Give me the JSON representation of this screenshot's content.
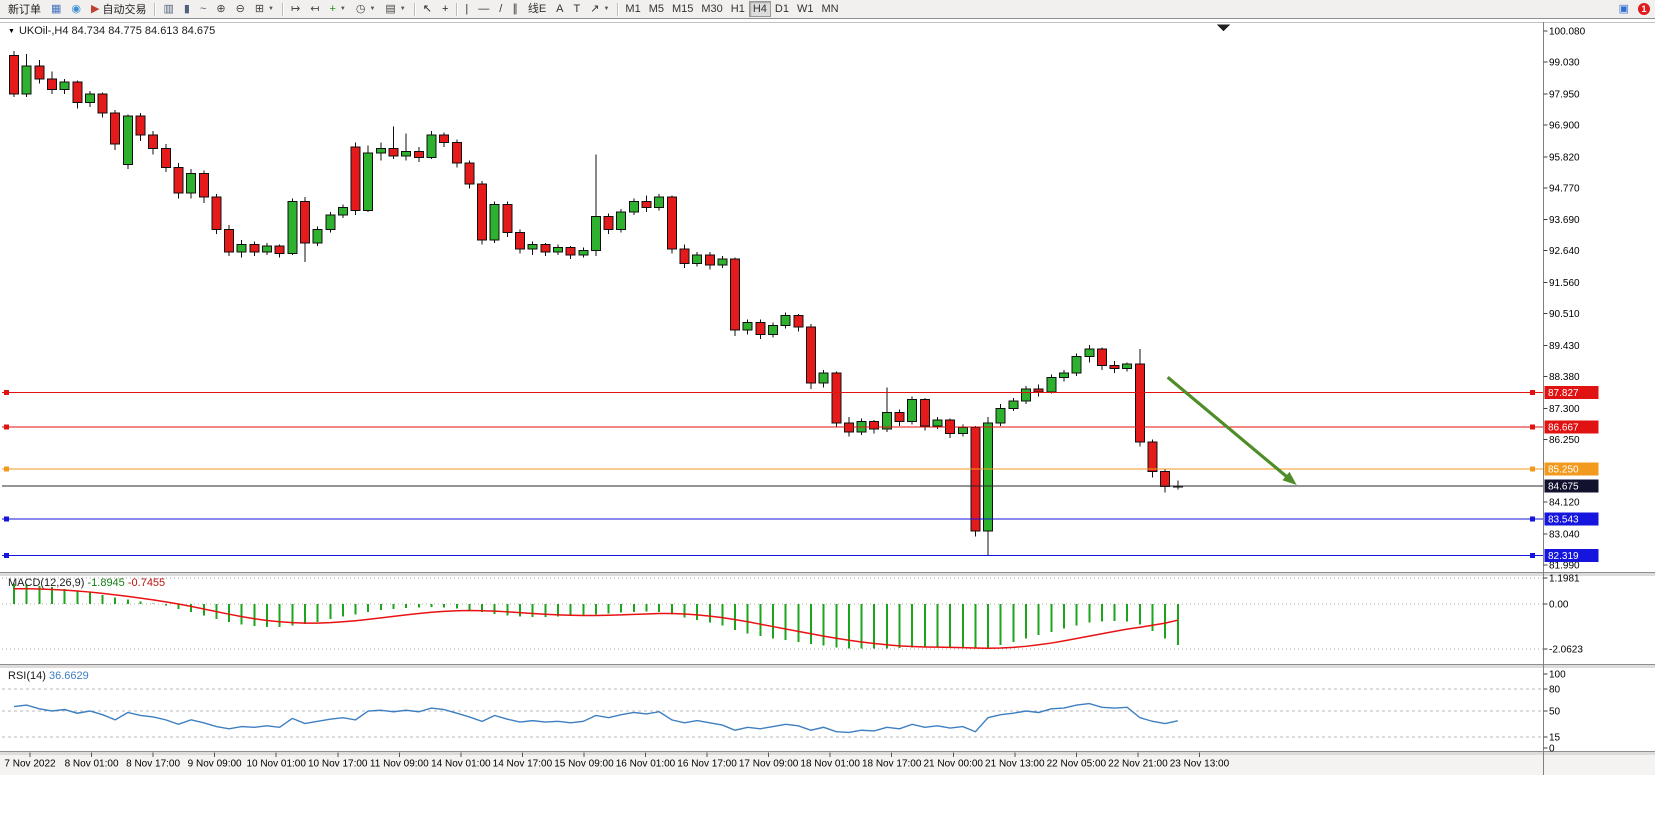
{
  "window": {
    "notification_count": "1"
  },
  "toolbar": {
    "groups": [
      [
        {
          "kind": "text",
          "name": "new-order-button",
          "label": "新订单"
        },
        {
          "kind": "icon",
          "name": "new-chart-window-icon",
          "glyph": "▦",
          "color": "#4273be"
        },
        {
          "kind": "icon",
          "name": "mql5-community-icon",
          "glyph": "◉",
          "color": "#3f8fd2"
        },
        {
          "kind": "icon-text",
          "name": "autotrading-button",
          "label": "自动交易",
          "glyph": "▶",
          "color": "#bf4030"
        }
      ],
      [
        {
          "kind": "icon",
          "name": "bar-chart-icon",
          "glyph": "▥",
          "color": "#50617a"
        },
        {
          "kind": "icon",
          "name": "candlestick-chart-icon",
          "glyph": "▮",
          "color": "#50617a"
        },
        {
          "kind": "icon",
          "name": "line-chart-icon",
          "glyph": "~",
          "color": "#50617a"
        },
        {
          "kind": "icon",
          "name": "zoom-in-icon",
          "glyph": "⊕",
          "color": "#444444"
        },
        {
          "kind": "icon",
          "name": "zoom-out-icon",
          "glyph": "⊖",
          "color": "#444444"
        },
        {
          "kind": "icon",
          "name": "tile-windows-icon",
          "glyph": "⊞",
          "color": "#444444",
          "caret": true
        }
      ],
      [
        {
          "kind": "icon",
          "name": "auto-scroll-icon",
          "glyph": "↦",
          "color": "#444444"
        },
        {
          "kind": "icon",
          "name": "chart-shift-icon",
          "glyph": "↤",
          "color": "#444444"
        },
        {
          "kind": "icon",
          "name": "new-chart-icon",
          "glyph": "+",
          "color": "#1f8f1f",
          "caret": true
        },
        {
          "kind": "icon",
          "name": "chart-period-icon",
          "glyph": "◷",
          "color": "#444444",
          "caret": true
        },
        {
          "kind": "icon",
          "name": "chart-template-icon",
          "glyph": "▤",
          "color": "#444444",
          "caret": true
        }
      ],
      [
        {
          "kind": "icon",
          "name": "cursor-icon",
          "glyph": "↖",
          "color": "#222222"
        },
        {
          "kind": "icon",
          "name": "crosshair-icon",
          "glyph": "+",
          "color": "#222222"
        }
      ],
      [
        {
          "kind": "icon",
          "name": "vertical-line-icon",
          "glyph": "|",
          "color": "#333333"
        },
        {
          "kind": "icon",
          "name": "horizontal-line-icon",
          "glyph": "—",
          "color": "#333333"
        },
        {
          "kind": "icon",
          "name": "trendline-icon",
          "glyph": "/",
          "color": "#333333"
        },
        {
          "kind": "icon",
          "name": "channel-icon",
          "glyph": "∥",
          "color": "#333333"
        },
        {
          "kind": "icon",
          "name": "fibonacci-icon",
          "glyph": "线E",
          "color": "#333333"
        },
        {
          "kind": "icon",
          "name": "text-icon",
          "glyph": "A",
          "color": "#333333"
        },
        {
          "kind": "icon",
          "name": "text-label-icon",
          "glyph": "T",
          "color": "#333333"
        },
        {
          "kind": "icon",
          "name": "arrows-icon",
          "glyph": "↗",
          "color": "#333333",
          "caret": true
        }
      ],
      [
        {
          "kind": "tf",
          "name": "timeframe-m1",
          "label": "M1"
        },
        {
          "kind": "tf",
          "name": "timeframe-m5",
          "label": "M5"
        },
        {
          "kind": "tf",
          "name": "timeframe-m15",
          "label": "M15"
        },
        {
          "kind": "tf",
          "name": "timeframe-m30",
          "label": "M30"
        },
        {
          "kind": "tf",
          "name": "timeframe-h1",
          "label": "H1"
        },
        {
          "kind": "tf",
          "name": "timeframe-h4",
          "label": "H4",
          "active": true
        },
        {
          "kind": "tf",
          "name": "timeframe-d1",
          "label": "D1"
        },
        {
          "kind": "tf",
          "name": "timeframe-w1",
          "label": "W1"
        },
        {
          "kind": "tf",
          "name": "timeframe-mn",
          "label": "MN"
        }
      ]
    ],
    "right": [
      {
        "kind": "icon",
        "name": "notifications-icon",
        "glyph": "▣",
        "color": "#2f6fd0"
      },
      {
        "kind": "badge",
        "name": "notification-badge",
        "label": "1",
        "color": "#e01b1b"
      }
    ]
  },
  "chart": {
    "title_text": "UKOil-,H4 84.734 84.775 84.613 84.675"
  },
  "chart_data": {
    "type": "candlestick",
    "symbol": "UKOil-",
    "timeframe": "H4",
    "ohlc_header": {
      "open": "84.734",
      "high": "84.775",
      "low": "84.613",
      "close": "84.675"
    },
    "colors": {
      "up": "#2eb12e",
      "down": "#e51a1a",
      "candle_border": "#101010",
      "wick": "#101010"
    },
    "price_axis_labels": [
      "100.080",
      "99.030",
      "97.950",
      "96.900",
      "95.820",
      "94.770",
      "93.690",
      "92.640",
      "91.560",
      "90.510",
      "89.430",
      "88.380",
      "87.300",
      "86.250",
      "84.120",
      "83.040",
      "81.990"
    ],
    "candles": [
      [
        99.25,
        99.4,
        97.85,
        97.95
      ],
      [
        97.95,
        99.3,
        97.85,
        98.9
      ],
      [
        98.9,
        99.1,
        98.3,
        98.45
      ],
      [
        98.45,
        98.7,
        97.95,
        98.1
      ],
      [
        98.1,
        98.45,
        97.95,
        98.35
      ],
      [
        98.35,
        98.4,
        97.45,
        97.65
      ],
      [
        97.65,
        98.05,
        97.5,
        97.95
      ],
      [
        97.95,
        98.0,
        97.15,
        97.3
      ],
      [
        97.3,
        97.4,
        96.05,
        96.25
      ],
      [
        95.55,
        97.25,
        95.4,
        97.2
      ],
      [
        97.2,
        97.3,
        96.35,
        96.55
      ],
      [
        96.55,
        96.7,
        95.9,
        96.1
      ],
      [
        96.1,
        96.25,
        95.3,
        95.45
      ],
      [
        95.45,
        95.6,
        94.4,
        94.6
      ],
      [
        94.6,
        95.4,
        94.4,
        95.25
      ],
      [
        95.25,
        95.35,
        94.25,
        94.45
      ],
      [
        94.45,
        94.55,
        93.2,
        93.35
      ],
      [
        93.35,
        93.5,
        92.45,
        92.6
      ],
      [
        92.6,
        93.0,
        92.4,
        92.85
      ],
      [
        92.85,
        92.95,
        92.45,
        92.6
      ],
      [
        92.6,
        92.9,
        92.5,
        92.8
      ],
      [
        92.8,
        92.85,
        92.4,
        92.55
      ],
      [
        92.55,
        94.4,
        92.5,
        94.3
      ],
      [
        94.3,
        94.45,
        92.25,
        92.9
      ],
      [
        92.9,
        93.45,
        92.8,
        93.35
      ],
      [
        93.35,
        93.95,
        93.25,
        93.85
      ],
      [
        93.85,
        94.2,
        93.75,
        94.1
      ],
      [
        96.15,
        96.3,
        93.85,
        94.0
      ],
      [
        94.0,
        96.2,
        93.95,
        95.95
      ],
      [
        95.95,
        96.3,
        95.7,
        96.1
      ],
      [
        96.1,
        96.85,
        95.75,
        95.85
      ],
      [
        95.85,
        96.6,
        95.7,
        96.0
      ],
      [
        96.0,
        96.15,
        95.65,
        95.8
      ],
      [
        95.8,
        96.7,
        95.75,
        96.55
      ],
      [
        96.55,
        96.65,
        96.15,
        96.3
      ],
      [
        96.3,
        96.4,
        95.45,
        95.6
      ],
      [
        95.6,
        95.7,
        94.75,
        94.9
      ],
      [
        94.9,
        95.0,
        92.85,
        93.0
      ],
      [
        93.0,
        94.3,
        92.9,
        94.2
      ],
      [
        94.2,
        94.3,
        93.1,
        93.25
      ],
      [
        93.25,
        93.35,
        92.55,
        92.7
      ],
      [
        92.7,
        92.95,
        92.5,
        92.85
      ],
      [
        92.85,
        92.9,
        92.45,
        92.6
      ],
      [
        92.6,
        92.85,
        92.5,
        92.75
      ],
      [
        92.75,
        92.8,
        92.35,
        92.5
      ],
      [
        92.5,
        92.75,
        92.4,
        92.65
      ],
      [
        92.65,
        95.9,
        92.45,
        93.8
      ],
      [
        93.8,
        93.9,
        93.2,
        93.35
      ],
      [
        93.35,
        94.05,
        93.25,
        93.95
      ],
      [
        93.95,
        94.4,
        93.85,
        94.3
      ],
      [
        94.3,
        94.5,
        93.95,
        94.1
      ],
      [
        94.1,
        94.55,
        94.0,
        94.45
      ],
      [
        94.45,
        94.5,
        92.55,
        92.7
      ],
      [
        92.7,
        92.85,
        92.05,
        92.2
      ],
      [
        92.2,
        92.6,
        92.1,
        92.5
      ],
      [
        92.5,
        92.6,
        92.0,
        92.15
      ],
      [
        92.15,
        92.45,
        92.05,
        92.35
      ],
      [
        92.35,
        92.4,
        89.75,
        89.95
      ],
      [
        89.95,
        90.3,
        89.8,
        90.2
      ],
      [
        90.2,
        90.3,
        89.65,
        89.8
      ],
      [
        89.8,
        90.2,
        89.7,
        90.1
      ],
      [
        90.1,
        90.55,
        90.0,
        90.45
      ],
      [
        90.45,
        90.5,
        89.9,
        90.05
      ],
      [
        90.05,
        90.15,
        87.95,
        88.15
      ],
      [
        88.15,
        88.6,
        88.0,
        88.5
      ],
      [
        88.5,
        88.55,
        86.65,
        86.8
      ],
      [
        86.8,
        87.0,
        86.35,
        86.5
      ],
      [
        86.5,
        86.95,
        86.4,
        86.85
      ],
      [
        86.85,
        86.9,
        86.45,
        86.6
      ],
      [
        86.6,
        88.0,
        86.5,
        87.15
      ],
      [
        87.15,
        87.25,
        86.7,
        86.85
      ],
      [
        86.85,
        87.7,
        86.75,
        87.6
      ],
      [
        87.6,
        87.65,
        86.55,
        86.7
      ],
      [
        86.7,
        87.0,
        86.6,
        86.9
      ],
      [
        86.9,
        86.95,
        86.3,
        86.45
      ],
      [
        86.45,
        86.75,
        86.35,
        86.65
      ],
      [
        86.65,
        86.7,
        82.95,
        83.15
      ],
      [
        83.15,
        87.0,
        82.31,
        86.8
      ],
      [
        86.8,
        87.45,
        86.7,
        87.3
      ],
      [
        87.3,
        87.65,
        87.2,
        87.55
      ],
      [
        87.55,
        88.05,
        87.45,
        87.95
      ],
      [
        87.95,
        88.1,
        87.7,
        87.85
      ],
      [
        87.85,
        88.45,
        87.8,
        88.35
      ],
      [
        88.35,
        88.6,
        88.2,
        88.5
      ],
      [
        88.5,
        89.15,
        88.4,
        89.05
      ],
      [
        89.05,
        89.45,
        88.85,
        89.3
      ],
      [
        89.3,
        89.35,
        88.6,
        88.75
      ],
      [
        88.75,
        88.9,
        88.5,
        88.65
      ],
      [
        88.65,
        88.85,
        88.55,
        88.8
      ],
      [
        88.8,
        89.3,
        86.0,
        86.15
      ],
      [
        86.15,
        86.25,
        84.95,
        85.15
      ],
      [
        85.15,
        85.25,
        84.45,
        84.65
      ],
      [
        84.65,
        84.85,
        84.55,
        84.675
      ]
    ],
    "hlines": [
      {
        "price": 87.827,
        "label": "87.827",
        "color": "#e11212",
        "box": "#e11212",
        "handles": true
      },
      {
        "price": 86.667,
        "label": "86.667",
        "color": "#e11212",
        "box": "#e11212",
        "handles": true
      },
      {
        "price": 85.25,
        "label": "85.250",
        "color": "#f29a1d",
        "box": "#f29a1d",
        "handles": true
      },
      {
        "price": 84.675,
        "label": "84.675",
        "color": "#2a2a2a",
        "box": "#12122e",
        "handles": false,
        "role": "bid-price-line"
      },
      {
        "price": 83.543,
        "label": "83.543",
        "color": "#1515dd",
        "box": "#1515dd",
        "handles": true
      },
      {
        "price": 82.319,
        "label": "82.319",
        "color": "#1515dd",
        "box": "#1515dd",
        "handles": true
      }
    ],
    "trend_arrow": {
      "from_index": 91.2,
      "from_price": 88.35,
      "to_index": 101.4,
      "to_price": 84.7,
      "color": "#4e8d28",
      "width": 3.2
    },
    "time_axis_labels": [
      "7 Nov 2022",
      "8 Nov 01:00",
      "8 Nov 17:00",
      "9 Nov 09:00",
      "10 Nov 01:00",
      "10 Nov 17:00",
      "11 Nov 09:00",
      "14 Nov 01:00",
      "14 Nov 17:00",
      "15 Nov 09:00",
      "16 Nov 01:00",
      "16 Nov 17:00",
      "17 Nov 09:00",
      "18 Nov 01:00",
      "18 Nov 17:00",
      "21 Nov 00:00",
      "21 Nov 13:00",
      "22 Nov 05:00",
      "22 Nov 21:00",
      "23 Nov 13:00"
    ],
    "macd": {
      "label": "MACD(12,26,9)",
      "main_value": "-1.8945",
      "signal_value": "-0.7455",
      "axis_labels": [
        "1.1981",
        "0.00",
        "-2.0623"
      ],
      "hist_color": "#1ca41c",
      "signal_color": "#e81212",
      "histogram": [
        0.95,
        0.9,
        0.84,
        0.78,
        0.7,
        0.62,
        0.52,
        0.42,
        0.3,
        0.2,
        0.12,
        0.03,
        -0.08,
        -0.22,
        -0.36,
        -0.52,
        -0.68,
        -0.84,
        -0.95,
        -1.02,
        -1.06,
        -1.06,
        -1.0,
        -0.92,
        -0.82,
        -0.7,
        -0.58,
        -0.48,
        -0.38,
        -0.28,
        -0.22,
        -0.18,
        -0.16,
        -0.14,
        -0.16,
        -0.2,
        -0.28,
        -0.38,
        -0.46,
        -0.52,
        -0.58,
        -0.6,
        -0.6,
        -0.58,
        -0.56,
        -0.52,
        -0.48,
        -0.44,
        -0.4,
        -0.36,
        -0.34,
        -0.36,
        -0.48,
        -0.62,
        -0.74,
        -0.86,
        -1.0,
        -1.2,
        -1.36,
        -1.48,
        -1.58,
        -1.66,
        -1.74,
        -1.85,
        -1.92,
        -2.0,
        -2.04,
        -2.06,
        -2.05,
        -2.04,
        -2.02,
        -2.0,
        -1.99,
        -1.98,
        -2.0,
        -2.03,
        -2.06,
        -2.02,
        -1.9,
        -1.76,
        -1.6,
        -1.44,
        -1.28,
        -1.12,
        -0.98,
        -0.86,
        -0.8,
        -0.78,
        -0.8,
        -0.95,
        -1.25,
        -1.6,
        -1.8945
      ],
      "signal": [
        0.7,
        0.7,
        0.69,
        0.67,
        0.64,
        0.6,
        0.55,
        0.49,
        0.42,
        0.35,
        0.27,
        0.19,
        0.1,
        0.0,
        -0.11,
        -0.23,
        -0.35,
        -0.47,
        -0.58,
        -0.68,
        -0.76,
        -0.82,
        -0.86,
        -0.88,
        -0.88,
        -0.86,
        -0.82,
        -0.77,
        -0.71,
        -0.64,
        -0.57,
        -0.5,
        -0.44,
        -0.38,
        -0.34,
        -0.31,
        -0.3,
        -0.31,
        -0.33,
        -0.36,
        -0.4,
        -0.44,
        -0.47,
        -0.5,
        -0.52,
        -0.53,
        -0.53,
        -0.52,
        -0.5,
        -0.48,
        -0.46,
        -0.44,
        -0.44,
        -0.46,
        -0.5,
        -0.56,
        -0.63,
        -0.72,
        -0.82,
        -0.93,
        -1.04,
        -1.15,
        -1.26,
        -1.37,
        -1.48,
        -1.58,
        -1.67,
        -1.75,
        -1.82,
        -1.88,
        -1.93,
        -1.96,
        -1.98,
        -1.99,
        -2.0,
        -2.01,
        -2.03,
        -2.04,
        -2.03,
        -2.0,
        -1.95,
        -1.88,
        -1.8,
        -1.7,
        -1.59,
        -1.48,
        -1.37,
        -1.26,
        -1.16,
        -1.07,
        -0.98,
        -0.88,
        -0.7455
      ]
    },
    "rsi": {
      "label": "RSI(14)",
      "value_text": "36.6629",
      "line_color": "#3e7fc1",
      "levels": [
        80,
        50,
        15
      ],
      "axis_labels": [
        "100",
        "80",
        "50",
        "15",
        "0"
      ],
      "values": [
        56,
        58,
        53,
        50,
        52,
        47,
        50,
        45,
        38,
        48,
        44,
        42,
        38,
        32,
        38,
        34,
        29,
        26,
        29,
        28,
        30,
        28,
        40,
        33,
        36,
        39,
        41,
        38,
        50,
        51,
        49,
        51,
        49,
        54,
        52,
        47,
        42,
        36,
        44,
        39,
        35,
        37,
        35,
        36,
        34,
        36,
        44,
        41,
        45,
        48,
        46,
        49,
        38,
        34,
        37,
        34,
        31,
        24,
        28,
        26,
        29,
        32,
        30,
        24,
        28,
        22,
        21,
        24,
        23,
        28,
        26,
        32,
        28,
        30,
        27,
        29,
        22,
        41,
        45,
        47,
        50,
        48,
        53,
        54,
        58,
        60,
        55,
        54,
        55,
        41,
        36,
        33,
        36.6629
      ]
    }
  }
}
